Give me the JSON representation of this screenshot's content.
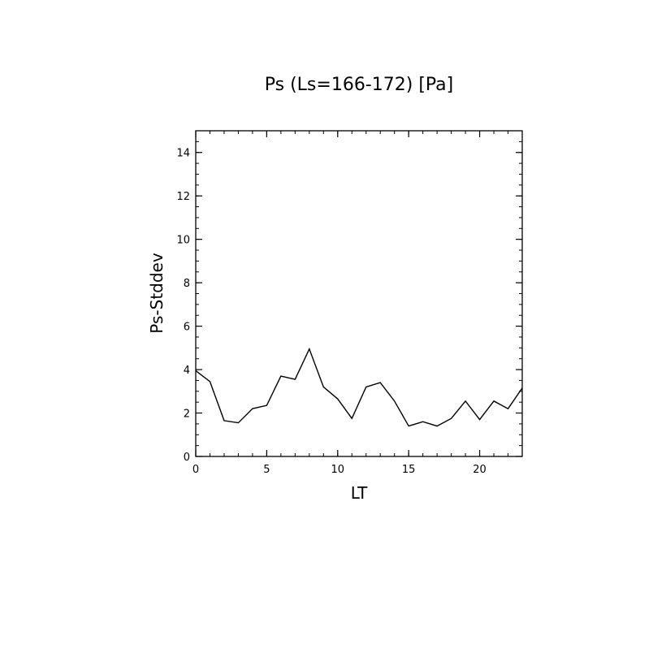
{
  "chart_data": {
    "type": "line",
    "title": "Ps (Ls=166-172) [Pa]",
    "xlabel": "LT",
    "ylabel": "Ps-Stddev",
    "xlim": [
      0,
      23
    ],
    "ylim": [
      0,
      15
    ],
    "x_ticks": [
      0,
      5,
      10,
      15,
      20
    ],
    "y_ticks": [
      0,
      2,
      4,
      6,
      8,
      10,
      12,
      14
    ],
    "x_tick_labels": [
      "0",
      "5",
      "10",
      "15",
      "20"
    ],
    "y_tick_labels": [
      "0",
      "2",
      "4",
      "6",
      "8",
      "10",
      "12",
      "14"
    ],
    "grid": false,
    "line_color": "#000000",
    "series": [
      {
        "x": [
          0,
          1,
          2,
          3,
          4,
          5,
          6,
          7,
          8,
          9,
          10,
          11,
          12,
          13,
          14,
          15,
          16,
          17,
          18,
          19,
          20,
          21,
          22,
          23
        ],
        "values": [
          3.95,
          3.45,
          1.65,
          1.55,
          2.2,
          2.35,
          3.7,
          3.55,
          4.95,
          3.2,
          2.65,
          1.75,
          3.2,
          3.4,
          2.55,
          1.4,
          1.6,
          1.4,
          1.75,
          2.55,
          1.7,
          2.55,
          2.2,
          3.15
        ]
      }
    ]
  }
}
